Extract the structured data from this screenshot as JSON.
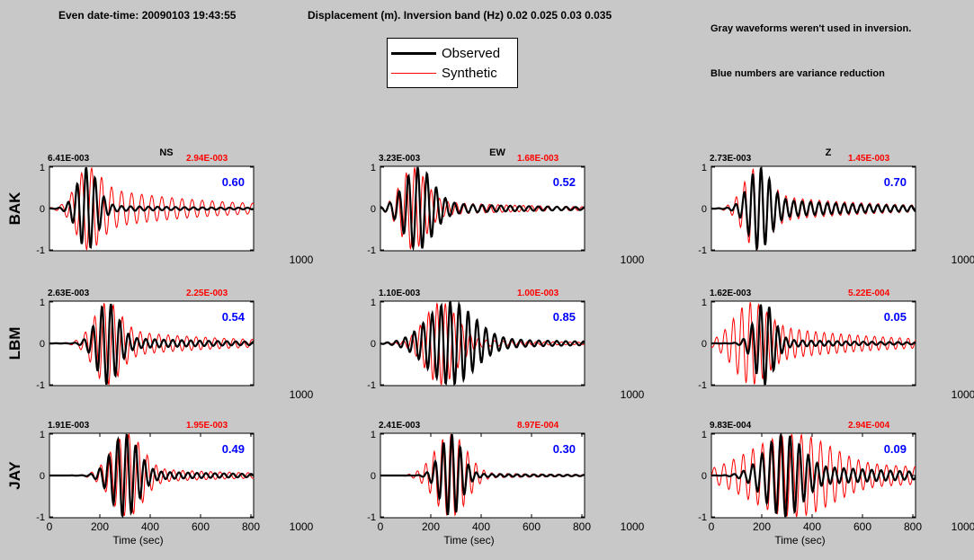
{
  "header": {
    "title": "Even date-time: 20090103  19:43:55",
    "subtitle": "Displacement (m).  Inversion band (Hz)  0.02 0.025 0.03 0.035"
  },
  "notes": {
    "gray_note": "Gray waveforms weren't used in inversion.",
    "blue_note": "Blue numbers are variance reduction"
  },
  "legend": {
    "observed_label": "Observed",
    "synthetic_label": "Synthetic"
  },
  "colors": {
    "observed": "#000000",
    "synthetic": "#ff0000",
    "variance_reduction": "#0000ff",
    "background": "#c8c8c8"
  },
  "chart_data": {
    "type": "line",
    "rows": [
      "BAK",
      "LBM",
      "JAY"
    ],
    "columns": [
      "NS",
      "EW",
      "Z"
    ],
    "xlabel": "Time (sec)",
    "ylim": [
      -1,
      1
    ],
    "xlim": [
      0,
      1000
    ],
    "yticks": [
      "1",
      "0",
      "-1"
    ],
    "xticks_full": [
      "0",
      "200",
      "400",
      "600",
      "800",
      "1000"
    ],
    "xtick_end": "1000",
    "series_names": [
      "Observed",
      "Synthetic"
    ],
    "panels": [
      {
        "station": "BAK",
        "component": "NS",
        "obs_amp": "6.41E-003",
        "syn_amp": "2.94E-003",
        "vr": "0.60",
        "observed": {
          "center": 150,
          "width": 55,
          "freq": 0.028,
          "tail": 0.08,
          "tail_freq": 0.028
        },
        "synthetic": {
          "center": 155,
          "width": 65,
          "freq": 0.025,
          "tail": 0.55,
          "tail_freq": 0.025
        }
      },
      {
        "station": "BAK",
        "component": "EW",
        "obs_amp": "3.23E-003",
        "syn_amp": "1.68E-003",
        "vr": "0.52",
        "observed": {
          "center": 150,
          "width": 80,
          "freq": 0.027,
          "tail": 0.15,
          "tail_freq": 0.027
        },
        "synthetic": {
          "center": 130,
          "width": 70,
          "freq": 0.03,
          "tail": 0.2,
          "tail_freq": 0.03
        }
      },
      {
        "station": "BAK",
        "component": "Z",
        "obs_amp": "2.73E-003",
        "syn_amp": "1.45E-003",
        "vr": "0.70",
        "observed": {
          "center": 190,
          "width": 60,
          "freq": 0.03,
          "tail": 0.25,
          "tail_freq": 0.03
        },
        "synthetic": {
          "center": 180,
          "width": 70,
          "freq": 0.03,
          "tail": 0.35,
          "tail_freq": 0.03
        }
      },
      {
        "station": "LBM",
        "component": "NS",
        "obs_amp": "2.63E-003",
        "syn_amp": "2.25E-003",
        "vr": "0.54",
        "observed": {
          "center": 230,
          "width": 60,
          "freq": 0.028,
          "tail": 0.15,
          "tail_freq": 0.028
        },
        "synthetic": {
          "center": 230,
          "width": 75,
          "freq": 0.027,
          "tail": 0.35,
          "tail_freq": 0.027
        }
      },
      {
        "station": "LBM",
        "component": "EW",
        "obs_amp": "1.10E-003",
        "syn_amp": "1.00E-003",
        "vr": "0.85",
        "observed": {
          "center": 280,
          "width": 130,
          "freq": 0.028,
          "tail": 0.15,
          "tail_freq": 0.028
        },
        "synthetic": {
          "center": 240,
          "width": 90,
          "freq": 0.03,
          "tail": 0.1,
          "tail_freq": 0.03
        }
      },
      {
        "station": "LBM",
        "component": "Z",
        "obs_amp": "1.62E-003",
        "syn_amp": "5.22E-004",
        "vr": "0.05",
        "observed": {
          "center": 210,
          "width": 55,
          "freq": 0.029,
          "tail": 0.1,
          "tail_freq": 0.029
        },
        "synthetic": {
          "center": 160,
          "width": 100,
          "freq": 0.03,
          "tail": 0.5,
          "tail_freq": 0.03
        }
      },
      {
        "station": "JAY",
        "component": "NS",
        "obs_amp": "1.91E-003",
        "syn_amp": "1.95E-003",
        "vr": "0.49",
        "observed": {
          "center": 300,
          "width": 75,
          "freq": 0.028,
          "tail": 0.12,
          "tail_freq": 0.028
        },
        "synthetic": {
          "center": 310,
          "width": 90,
          "freq": 0.027,
          "tail": 0.2,
          "tail_freq": 0.027
        }
      },
      {
        "station": "JAY",
        "component": "EW",
        "obs_amp": "2.41E-003",
        "syn_amp": "8.97E-004",
        "vr": "0.30",
        "observed": {
          "center": 280,
          "width": 60,
          "freq": 0.03,
          "tail": 0.05,
          "tail_freq": 0.03
        },
        "synthetic": {
          "center": 280,
          "width": 90,
          "freq": 0.03,
          "tail": 0.08,
          "tail_freq": 0.03
        }
      },
      {
        "station": "JAY",
        "component": "Z",
        "obs_amp": "9.83E-004",
        "syn_amp": "2.94E-004",
        "vr": "0.09",
        "observed": {
          "center": 290,
          "width": 110,
          "freq": 0.027,
          "tail": 0.3,
          "tail_freq": 0.027
        },
        "synthetic": {
          "center": 330,
          "width": 250,
          "freq": 0.026,
          "tail": 0.65,
          "tail_freq": 0.026
        }
      }
    ]
  }
}
